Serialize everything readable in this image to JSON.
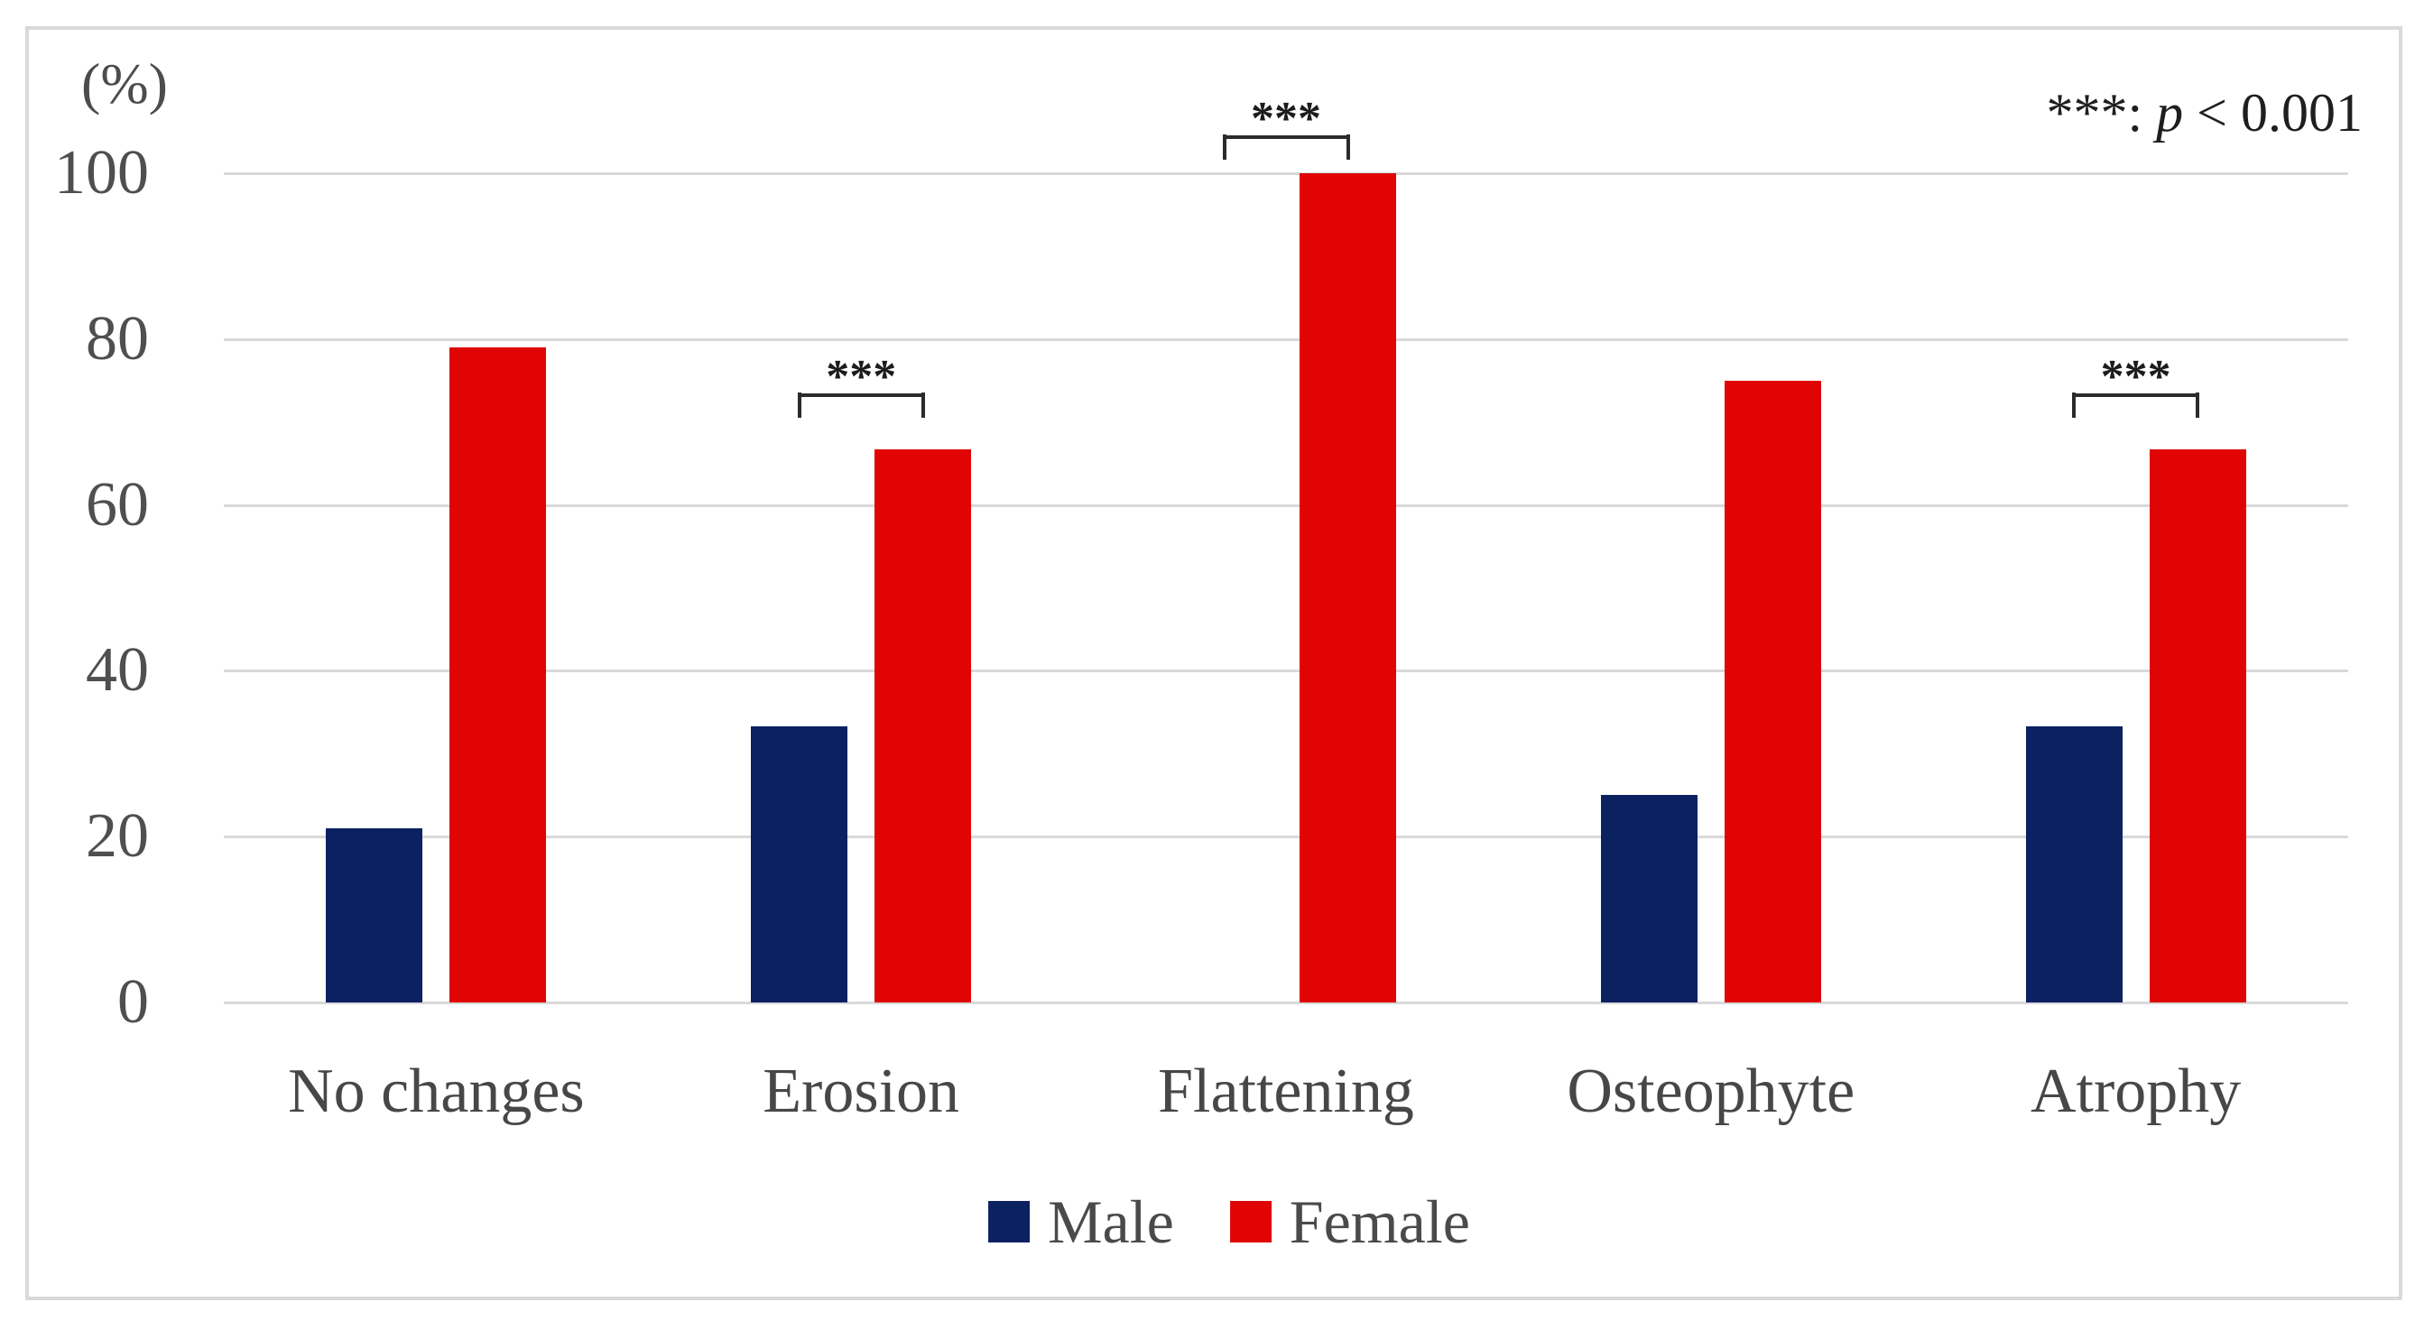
{
  "figure": {
    "kind": "grouped-bar-chart"
  },
  "annotation": {
    "stars": "***",
    "separator": ": ",
    "p_symbol": "p",
    "rest": " < 0.001"
  },
  "chart_data": {
    "type": "bar",
    "title": "",
    "categories": [
      "No changes",
      "Erosion",
      "Flattening",
      "Osteophyte",
      "Atrophy"
    ],
    "series": [
      {
        "name": "Male",
        "color": "#0b2161",
        "values": [
          21,
          33.3,
          0,
          25,
          33.3
        ]
      },
      {
        "name": "Female",
        "color": "#e00404",
        "values": [
          79,
          66.7,
          100,
          75,
          66.7
        ]
      }
    ],
    "ylabel": "(%)",
    "xlabel": "",
    "ylim": [
      0,
      100
    ],
    "y_ticks": [
      0,
      20,
      40,
      60,
      80,
      100
    ],
    "grid": true,
    "gridline_color": "#d9d9d9",
    "legend_position": "bottom",
    "significance_label": "***",
    "significant_categories": [
      "Erosion",
      "Flattening",
      "Atrophy"
    ],
    "annotation": "***: p < 0.001"
  }
}
